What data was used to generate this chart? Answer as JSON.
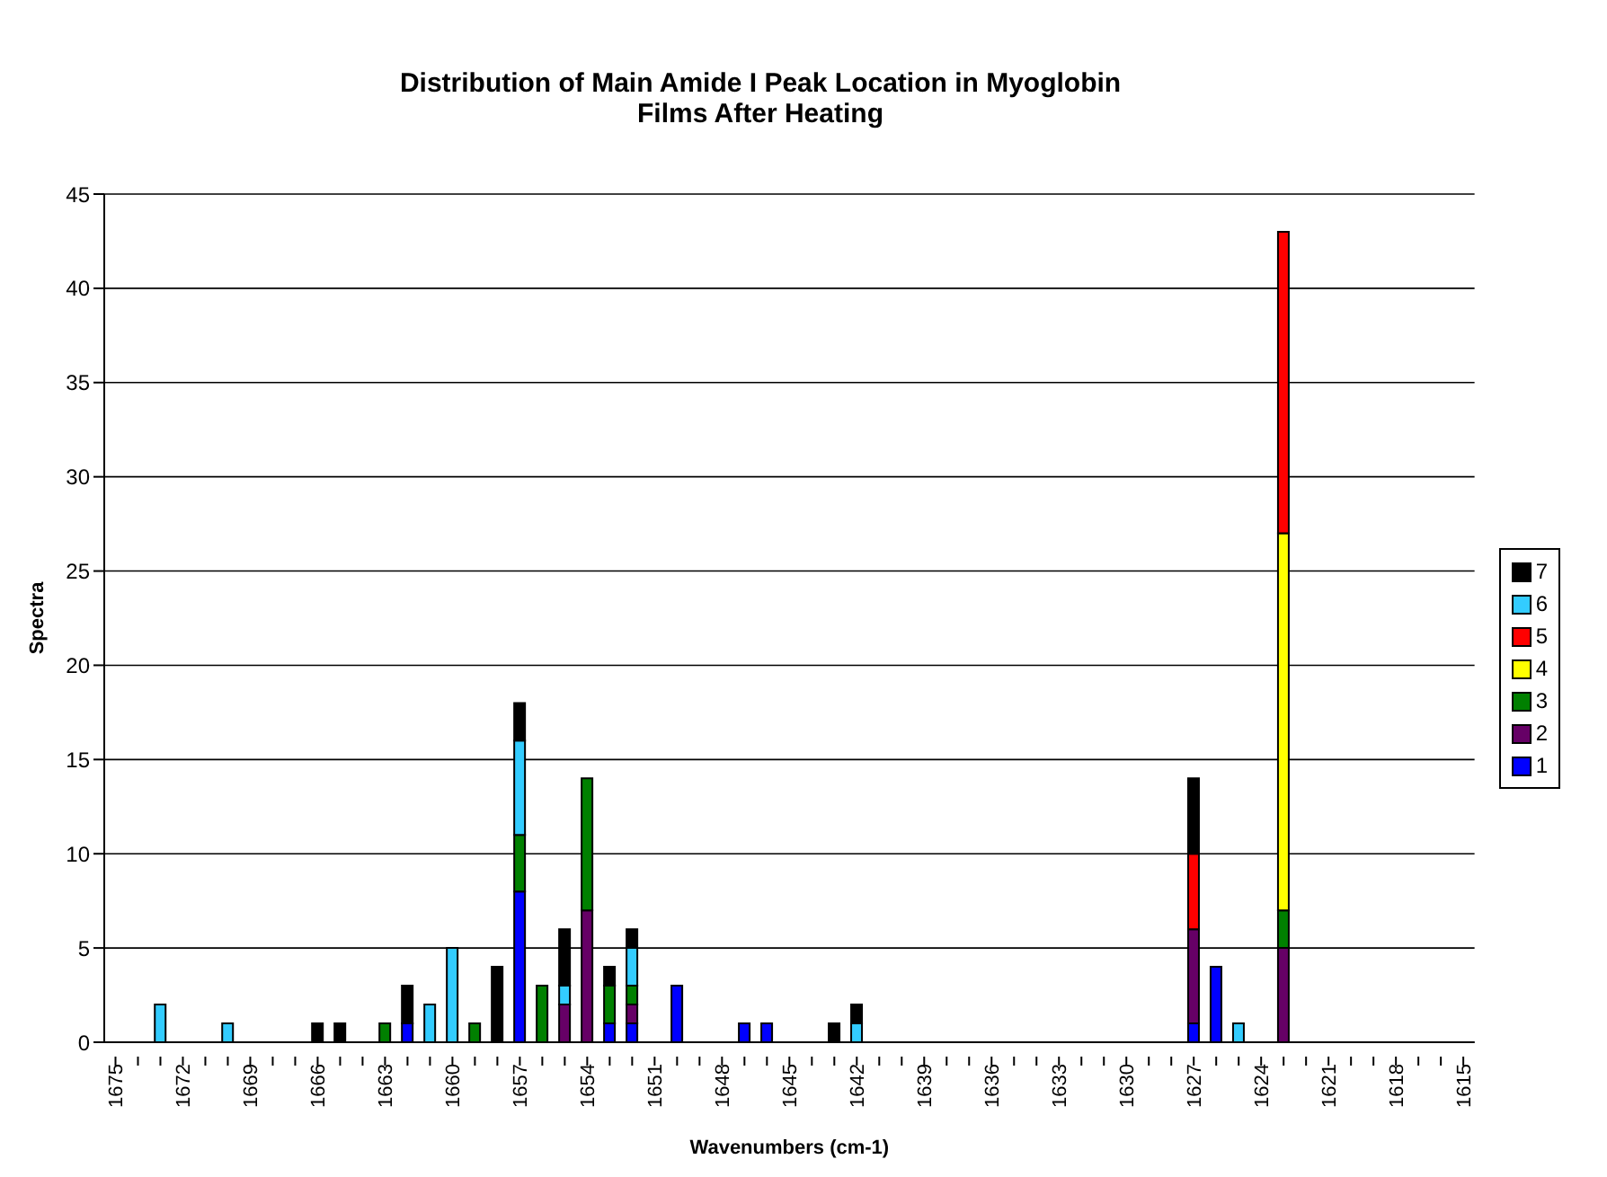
{
  "chart_data": {
    "type": "bar",
    "title": "Distribution of Main Amide I Peak Location in Myoglobin Films After Heating",
    "xlabel": "Wavenumbers (cm-1)",
    "ylabel": "Spectra",
    "categories": [
      "1675",
      null,
      null,
      "1672",
      null,
      null,
      "1669",
      null,
      null,
      "1666",
      null,
      null,
      "1663",
      null,
      null,
      "1660",
      null,
      null,
      "1657",
      null,
      null,
      "1654",
      null,
      null,
      "1651",
      null,
      null,
      "1648",
      null,
      null,
      "1645",
      null,
      null,
      "1642",
      null,
      null,
      "1639",
      null,
      null,
      "1636",
      null,
      null,
      "1633",
      null,
      null,
      "1630",
      null,
      null,
      "1627",
      null,
      null,
      "1624",
      null,
      null,
      "1621",
      null,
      null,
      "1618",
      null,
      null,
      "1615"
    ],
    "stacked": true,
    "ylim": [
      0,
      45
    ],
    "yticks": [
      0,
      5,
      10,
      15,
      20,
      25,
      30,
      35,
      40,
      45
    ],
    "grid": "y",
    "legend": "right",
    "series": [
      {
        "name": "1",
        "color": "#0000ff",
        "values": [
          null,
          null,
          null,
          null,
          null,
          null,
          null,
          null,
          null,
          null,
          null,
          null,
          null,
          1,
          null,
          null,
          null,
          null,
          8,
          null,
          null,
          null,
          1,
          1,
          null,
          3,
          null,
          null,
          1,
          1,
          null,
          null,
          null,
          null,
          null,
          null,
          null,
          null,
          null,
          null,
          null,
          null,
          null,
          null,
          null,
          null,
          null,
          null,
          1,
          4,
          null,
          null,
          null,
          null,
          null,
          null,
          null,
          null,
          null,
          null,
          null
        ]
      },
      {
        "name": "2",
        "color": "#660066",
        "values": [
          null,
          null,
          null,
          null,
          null,
          null,
          null,
          null,
          null,
          null,
          null,
          null,
          null,
          null,
          null,
          null,
          null,
          null,
          null,
          null,
          2,
          7,
          null,
          1,
          null,
          null,
          null,
          null,
          null,
          null,
          null,
          null,
          null,
          null,
          null,
          null,
          null,
          null,
          null,
          null,
          null,
          null,
          null,
          null,
          null,
          null,
          null,
          null,
          5,
          null,
          null,
          null,
          5,
          null,
          null,
          null,
          null,
          null,
          null,
          null,
          null
        ]
      },
      {
        "name": "3",
        "color": "#008000",
        "values": [
          null,
          null,
          null,
          null,
          null,
          null,
          null,
          null,
          null,
          null,
          null,
          null,
          1,
          null,
          null,
          null,
          1,
          null,
          3,
          3,
          null,
          7,
          2,
          1,
          null,
          null,
          null,
          null,
          null,
          null,
          null,
          null,
          null,
          null,
          null,
          null,
          null,
          null,
          null,
          null,
          null,
          null,
          null,
          null,
          null,
          null,
          null,
          null,
          null,
          null,
          null,
          null,
          2,
          null,
          null,
          null,
          null,
          null,
          null,
          null,
          null
        ]
      },
      {
        "name": "4",
        "color": "#ffff00",
        "values": [
          null,
          null,
          null,
          null,
          null,
          null,
          null,
          null,
          null,
          null,
          null,
          null,
          null,
          null,
          null,
          null,
          null,
          null,
          null,
          null,
          null,
          null,
          null,
          null,
          null,
          null,
          null,
          null,
          null,
          null,
          null,
          null,
          null,
          null,
          null,
          null,
          null,
          null,
          null,
          null,
          null,
          null,
          null,
          null,
          null,
          null,
          null,
          null,
          null,
          null,
          null,
          null,
          20,
          null,
          null,
          null,
          null,
          null,
          null,
          null,
          null
        ]
      },
      {
        "name": "5",
        "color": "#ff0000",
        "values": [
          null,
          null,
          null,
          null,
          null,
          null,
          null,
          null,
          null,
          null,
          null,
          null,
          null,
          null,
          null,
          null,
          null,
          null,
          null,
          null,
          null,
          null,
          null,
          null,
          null,
          null,
          null,
          null,
          null,
          null,
          null,
          null,
          null,
          null,
          null,
          null,
          null,
          null,
          null,
          null,
          null,
          null,
          null,
          null,
          null,
          null,
          null,
          null,
          4,
          null,
          null,
          null,
          16,
          null,
          null,
          null,
          null,
          null,
          null,
          null,
          null
        ]
      },
      {
        "name": "6",
        "color": "#33ccff",
        "values": [
          null,
          null,
          2,
          null,
          null,
          1,
          null,
          null,
          null,
          null,
          null,
          null,
          null,
          null,
          2,
          5,
          null,
          null,
          5,
          null,
          1,
          null,
          null,
          2,
          null,
          null,
          null,
          null,
          null,
          null,
          null,
          null,
          null,
          1,
          null,
          null,
          null,
          null,
          null,
          null,
          null,
          null,
          null,
          null,
          null,
          null,
          null,
          null,
          null,
          null,
          1,
          null,
          null,
          null,
          null,
          null,
          null,
          null,
          null,
          null,
          null
        ]
      },
      {
        "name": "7",
        "color": "#000000",
        "values": [
          null,
          null,
          null,
          null,
          null,
          null,
          null,
          null,
          null,
          1,
          1,
          null,
          null,
          2,
          null,
          null,
          null,
          4,
          2,
          null,
          3,
          null,
          1,
          1,
          null,
          null,
          null,
          null,
          null,
          null,
          null,
          null,
          1,
          1,
          null,
          null,
          null,
          null,
          null,
          null,
          null,
          null,
          null,
          null,
          null,
          null,
          null,
          null,
          4,
          null,
          null,
          null,
          null,
          null,
          null,
          null,
          null,
          null,
          null,
          null,
          null
        ]
      }
    ]
  }
}
